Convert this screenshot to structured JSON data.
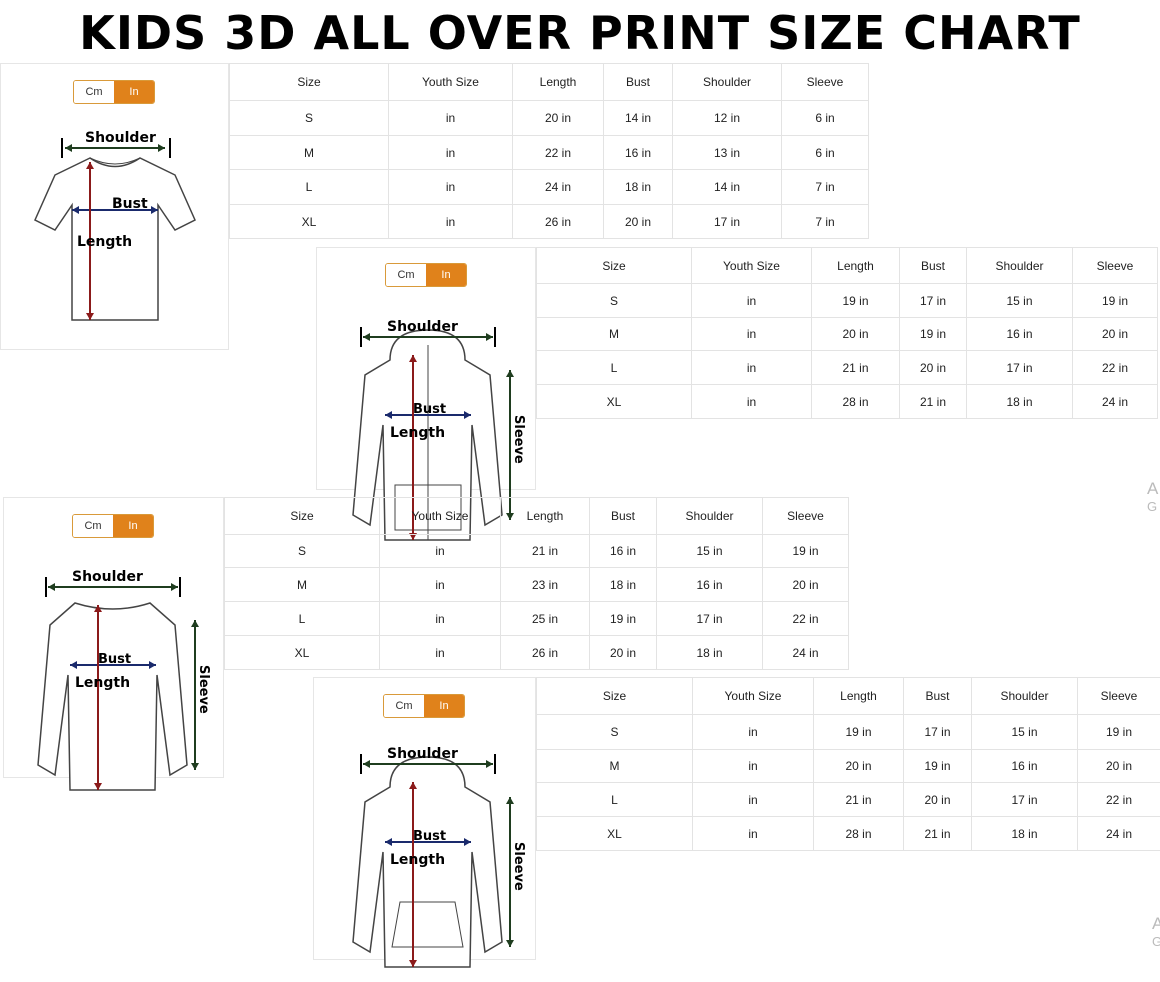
{
  "title": "KIDS 3D ALL OVER PRINT SIZE CHART",
  "toggle": {
    "cm": "Cm",
    "in": "In"
  },
  "accent_color": "#e0821b",
  "measure_labels": {
    "shoulder": "Shoulder",
    "bust": "Bust",
    "length": "Length",
    "sleeve": "Sleeve"
  },
  "charts": [
    {
      "garment": "t-shirt",
      "headers": [
        "Size",
        "Youth Size",
        "Length",
        "Bust",
        "Shoulder",
        "Sleeve"
      ],
      "rows": [
        [
          "S",
          "in",
          "20 in",
          "14 in",
          "12 in",
          "6 in"
        ],
        [
          "M",
          "in",
          "22 in",
          "16 in",
          "13 in",
          "6 in"
        ],
        [
          "L",
          "in",
          "24 in",
          "18 in",
          "14 in",
          "7 in"
        ],
        [
          "XL",
          "in",
          "26 in",
          "20 in",
          "17 in",
          "7 in"
        ]
      ]
    },
    {
      "garment": "zip-hoodie",
      "headers": [
        "Size",
        "Youth Size",
        "Length",
        "Bust",
        "Shoulder",
        "Sleeve"
      ],
      "rows": [
        [
          "S",
          "in",
          "19 in",
          "17 in",
          "15 in",
          "19 in"
        ],
        [
          "M",
          "in",
          "20 in",
          "19 in",
          "16 in",
          "20 in"
        ],
        [
          "L",
          "in",
          "21 in",
          "20 in",
          "17 in",
          "22 in"
        ],
        [
          "XL",
          "in",
          "28 in",
          "21 in",
          "18 in",
          "24 in"
        ]
      ]
    },
    {
      "garment": "long-sleeve-shirt",
      "headers": [
        "Size",
        "Youth Size",
        "Length",
        "Bust",
        "Shoulder",
        "Sleeve"
      ],
      "rows": [
        [
          "S",
          "in",
          "21 in",
          "16 in",
          "15 in",
          "19 in"
        ],
        [
          "M",
          "in",
          "23 in",
          "18 in",
          "16 in",
          "20 in"
        ],
        [
          "L",
          "in",
          "25 in",
          "19 in",
          "17 in",
          "22 in"
        ],
        [
          "XL",
          "in",
          "26 in",
          "20 in",
          "18 in",
          "24 in"
        ]
      ]
    },
    {
      "garment": "pullover-hoodie",
      "headers": [
        "Size",
        "Youth Size",
        "Length",
        "Bust",
        "Shoulder",
        "Sleeve"
      ],
      "rows": [
        [
          "S",
          "in",
          "19 in",
          "17 in",
          "15 in",
          "19 in"
        ],
        [
          "M",
          "in",
          "20 in",
          "19 in",
          "16 in",
          "20 in"
        ],
        [
          "L",
          "in",
          "21 in",
          "20 in",
          "17 in",
          "22 in"
        ],
        [
          "XL",
          "in",
          "28 in",
          "21 in",
          "18 in",
          "24 in"
        ]
      ]
    }
  ],
  "watermark": {
    "line1": "A",
    "line2": "G"
  }
}
